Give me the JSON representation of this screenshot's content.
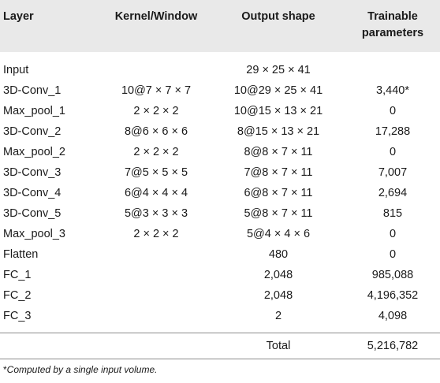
{
  "headers": {
    "layer": "Layer",
    "kernel": "Kernel/Window",
    "output": "Output shape",
    "params": "Trainable parameters"
  },
  "rows": [
    {
      "layer": "Input",
      "kernel": "",
      "output": "29 × 25 × 41",
      "params": ""
    },
    {
      "layer": "3D-Conv_1",
      "kernel": "10@7 × 7 × 7",
      "output": "10@29 × 25 × 41",
      "params": "3,440*"
    },
    {
      "layer": "Max_pool_1",
      "kernel": "2 × 2 × 2",
      "output": "10@15 × 13 × 21",
      "params": "0"
    },
    {
      "layer": "3D-Conv_2",
      "kernel": "8@6 × 6 × 6",
      "output": "8@15 × 13 × 21",
      "params": "17,288"
    },
    {
      "layer": "Max_pool_2",
      "kernel": "2 × 2 × 2",
      "output": "8@8 × 7 × 11",
      "params": "0"
    },
    {
      "layer": "3D-Conv_3",
      "kernel": "7@5 × 5 × 5",
      "output": "7@8 × 7 × 11",
      "params": "7,007"
    },
    {
      "layer": "3D-Conv_4",
      "kernel": "6@4 × 4 × 4",
      "output": "6@8 × 7 × 11",
      "params": "2,694"
    },
    {
      "layer": "3D-Conv_5",
      "kernel": "5@3 × 3 × 3",
      "output": "5@8 × 7 × 11",
      "params": "815"
    },
    {
      "layer": "Max_pool_3",
      "kernel": "2 × 2 × 2",
      "output": "5@4 × 4 × 6",
      "params": "0"
    },
    {
      "layer": "Flatten",
      "kernel": "",
      "output": "480",
      "params": "0"
    },
    {
      "layer": "FC_1",
      "kernel": "",
      "output": "2,048",
      "params": "985,088"
    },
    {
      "layer": "FC_2",
      "kernel": "",
      "output": "2,048",
      "params": "4,196,352"
    },
    {
      "layer": "FC_3",
      "kernel": "",
      "output": "2",
      "params": "4,098"
    }
  ],
  "total": {
    "label": "Total",
    "value": "5,216,782"
  },
  "footnote": {
    "marker": "*",
    "text": "Computed by a single input volume."
  },
  "colors": {
    "header_bg": "#e9e9e9",
    "rule": "#8c8c8c",
    "text": "#1a1a1a"
  }
}
